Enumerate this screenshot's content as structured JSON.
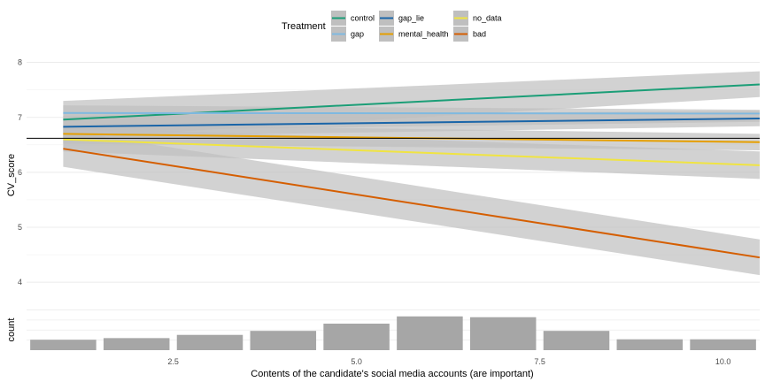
{
  "chart_data": [
    {
      "type": "line",
      "title": "",
      "xlabel": "Contents of the candidate's social media accounts (are important)",
      "ylabel": "CV_score",
      "xlim": [
        0.5,
        10.5
      ],
      "ylim": [
        3.6,
        8.3
      ],
      "x_ticks": [
        2.5,
        5.0,
        7.5,
        10.0
      ],
      "x_tick_labels": [
        "2.5",
        "5.0",
        "7.5",
        "10.0"
      ],
      "y_ticks": [
        4,
        5,
        6,
        7,
        8
      ],
      "y_tick_labels": [
        "4",
        "5",
        "6",
        "7",
        "8"
      ],
      "grid": true,
      "hline": 6.62,
      "legend": {
        "title": "Treatment",
        "placement": "top",
        "entries": [
          "control",
          "gap",
          "gap_lie",
          "mental_health",
          "no_data",
          "bad"
        ]
      },
      "series": [
        {
          "name": "control",
          "color": "#1b9e77",
          "x": [
            1,
            10.5
          ],
          "y": [
            6.96,
            7.6
          ],
          "ci_low": [
            6.62,
            7.37
          ],
          "ci_high": [
            7.3,
            7.84
          ]
        },
        {
          "name": "gap",
          "color": "#7fb9e0",
          "x": [
            1,
            10.5
          ],
          "y": [
            7.08,
            7.07
          ],
          "ci_low": [
            6.75,
            6.92
          ],
          "ci_high": [
            7.22,
            7.14
          ]
        },
        {
          "name": "gap_lie",
          "color": "#1a65a8",
          "x": [
            1,
            10.5
          ],
          "y": [
            6.83,
            6.98
          ],
          "ci_low": [
            6.64,
            6.84
          ],
          "ci_high": [
            7.03,
            7.12
          ]
        },
        {
          "name": "mental_health",
          "color": "#e69f00",
          "x": [
            1,
            10.5
          ],
          "y": [
            6.7,
            6.55
          ],
          "ci_low": [
            6.52,
            6.4
          ],
          "ci_high": [
            6.88,
            6.7
          ]
        },
        {
          "name": "no_data",
          "color": "#f0e442",
          "x": [
            1,
            10.5
          ],
          "y": [
            6.6,
            6.13
          ],
          "ci_low": [
            6.38,
            5.88
          ],
          "ci_high": [
            6.82,
            6.38
          ]
        },
        {
          "name": "bad",
          "color": "#d55e00",
          "x": [
            1,
            10.5
          ],
          "y": [
            6.43,
            4.45
          ],
          "ci_low": [
            6.1,
            4.13
          ],
          "ci_high": [
            6.76,
            4.78
          ]
        }
      ]
    },
    {
      "type": "bar",
      "ylabel": "count",
      "categories": [
        1,
        2,
        3,
        4,
        5,
        6,
        7,
        8,
        9,
        10
      ],
      "values": [
        26,
        30,
        38,
        48,
        66,
        84,
        82,
        48,
        27,
        27
      ],
      "ylim": [
        0,
        110
      ],
      "color": "#a6a6a6"
    }
  ]
}
